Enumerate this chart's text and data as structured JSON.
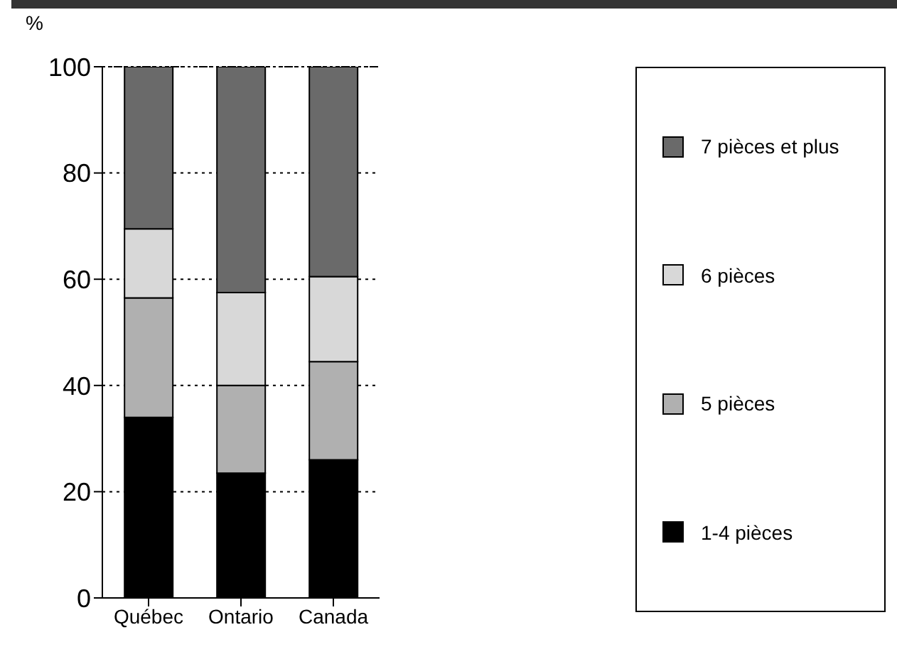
{
  "chart_data": {
    "type": "bar",
    "stacked": true,
    "ylabel": "%",
    "categories": [
      "Québec",
      "Ontario",
      "Canada"
    ],
    "series": [
      {
        "name": "1-4 pièces",
        "color": "#000000",
        "values": [
          34,
          23.5,
          26
        ]
      },
      {
        "name": "5 pièces",
        "color": "#b0b0b0",
        "values": [
          22.5,
          16.5,
          18.5
        ]
      },
      {
        "name": "6 pièces",
        "color": "#d8d8d8",
        "values": [
          13,
          17.5,
          16
        ]
      },
      {
        "name": "7 pièces et plus",
        "color": "#6a6a6a",
        "values": [
          30.5,
          42.5,
          39.5
        ]
      }
    ],
    "ylim": [
      0,
      100
    ],
    "yticks": [
      0,
      20,
      40,
      60,
      80,
      100
    ],
    "grid": "y",
    "legend": "right"
  }
}
